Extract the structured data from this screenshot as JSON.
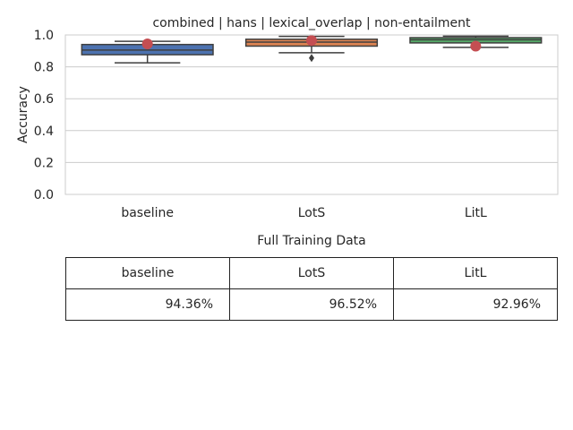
{
  "chart_data": {
    "type": "box",
    "title": "combined | hans | lexical_overlap | non-entailment",
    "ylabel": "Accuracy",
    "xlabel": "",
    "ylim": [
      0,
      1.0
    ],
    "yticks": [
      "0.0",
      "0.2",
      "0.4",
      "0.6",
      "0.8",
      "1.0"
    ],
    "grid": "horizontal",
    "categories": [
      "baseline",
      "LotS",
      "LitL"
    ],
    "boxes": [
      {
        "category": "baseline",
        "whisker_low": 0.825,
        "q1": 0.876,
        "median": 0.905,
        "q3": 0.94,
        "whisker_high": 0.96,
        "outliers": [],
        "mean": 0.9436,
        "color": "#4c72b0"
      },
      {
        "category": "LotS",
        "whisker_low": 0.888,
        "q1": 0.93,
        "median": 0.955,
        "q3": 0.973,
        "whisker_high": 0.991,
        "outliers": [
          0.855
        ],
        "mean": 0.9652,
        "color": "#dd8452"
      },
      {
        "category": "LitL",
        "whisker_low": 0.922,
        "q1": 0.95,
        "median": 0.97,
        "q3": 0.983,
        "whisker_high": 0.992,
        "outliers": [],
        "mean": 0.9296,
        "color": "#55a868"
      }
    ],
    "mean_marker_color": "#c44e52"
  },
  "table": {
    "title": "Full Training Data",
    "headers": [
      "baseline",
      "LotS",
      "LitL"
    ],
    "values": [
      "94.36%",
      "96.52%",
      "92.96%"
    ]
  }
}
